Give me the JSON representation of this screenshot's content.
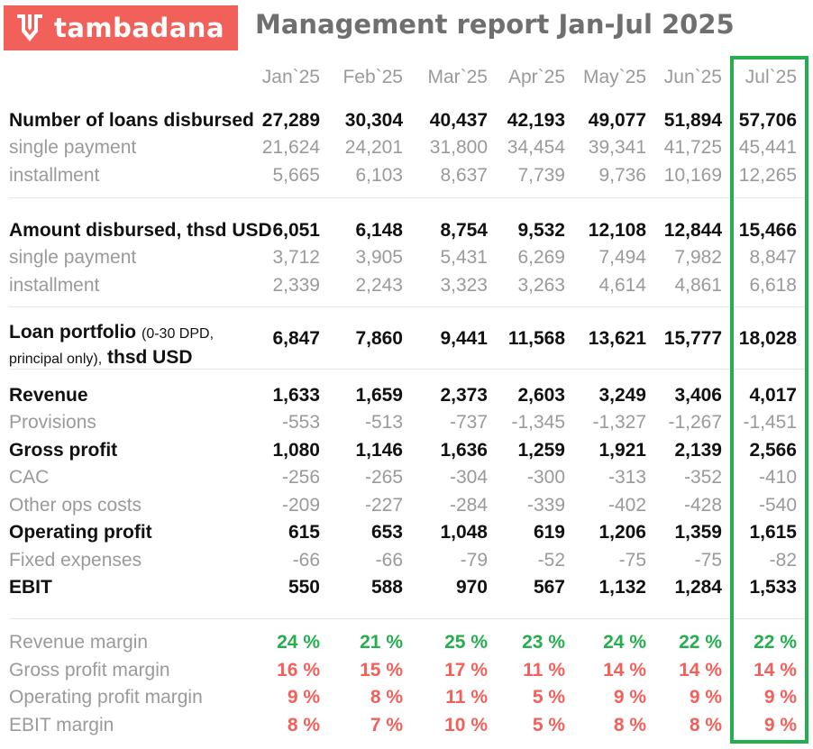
{
  "brand": {
    "name": "tambadana",
    "color": "#f2605a"
  },
  "report": {
    "title": "Management report Jan-Jul 2025"
  },
  "months": [
    "Jan`25",
    "Feb`25",
    "Mar`25",
    "Apr`25",
    "May`25",
    "Jun`25",
    "Jul`25"
  ],
  "highlight": {
    "month": "Jul`25",
    "color": "#24ae4e"
  },
  "rows": [
    {
      "id": "loans-disbursed",
      "label": "Number of loans disbursed",
      "style": "bold",
      "values": [
        "27,289",
        "30,304",
        "40,437",
        "42,193",
        "49,077",
        "51,894",
        "57,706"
      ]
    },
    {
      "id": "loans-single",
      "label": "single payment",
      "style": "gray",
      "values": [
        "21,624",
        "24,201",
        "31,800",
        "34,454",
        "39,341",
        "41,725",
        "45,441"
      ]
    },
    {
      "id": "loans-installment",
      "label": "installment",
      "style": "gray",
      "values": [
        "5,665",
        "6,103",
        "8,637",
        "7,739",
        "9,736",
        "10,169",
        "12,265"
      ]
    },
    {
      "id": "amount-disbursed",
      "label": "Amount disbursed, thsd USD",
      "style": "bold",
      "values": [
        "6,051",
        "6,148",
        "8,754",
        "9,532",
        "12,108",
        "12,844",
        "15,466"
      ]
    },
    {
      "id": "amount-single",
      "label": "single payment",
      "style": "gray",
      "values": [
        "3,712",
        "3,905",
        "5,431",
        "6,269",
        "7,494",
        "7,982",
        "8,847"
      ]
    },
    {
      "id": "amount-installment",
      "label": "installment",
      "style": "gray",
      "values": [
        "2,339",
        "2,243",
        "3,323",
        "3,263",
        "4,614",
        "4,861",
        "6,618"
      ]
    },
    {
      "id": "loan-portfolio",
      "label": "Loan portfolio",
      "label_note": "(0-30 DPD,",
      "label_line2_note": "principal only),",
      "label_line2_bold": "thsd USD",
      "style": "bold",
      "values": [
        "6,847",
        "7,860",
        "9,441",
        "11,568",
        "13,621",
        "15,777",
        "18,028"
      ]
    },
    {
      "id": "revenue",
      "label": "Revenue",
      "style": "bold",
      "values": [
        "1,633",
        "1,659",
        "2,373",
        "2,603",
        "3,249",
        "3,406",
        "4,017"
      ]
    },
    {
      "id": "provisions",
      "label": "Provisions",
      "style": "gray",
      "values": [
        "-553",
        "-513",
        "-737",
        "-1,345",
        "-1,327",
        "-1,267",
        "-1,451"
      ]
    },
    {
      "id": "gross-profit",
      "label": "Gross profit",
      "style": "bold",
      "values": [
        "1,080",
        "1,146",
        "1,636",
        "1,259",
        "1,921",
        "2,139",
        "2,566"
      ]
    },
    {
      "id": "cac",
      "label": "CAC",
      "style": "gray",
      "values": [
        "-256",
        "-265",
        "-304",
        "-300",
        "-313",
        "-352",
        "-410"
      ]
    },
    {
      "id": "other-ops-costs",
      "label": "Other ops costs",
      "style": "gray",
      "values": [
        "-209",
        "-227",
        "-284",
        "-339",
        "-402",
        "-428",
        "-540"
      ]
    },
    {
      "id": "operating-profit",
      "label": "Operating profit",
      "style": "bold",
      "values": [
        "615",
        "653",
        "1,048",
        "619",
        "1,206",
        "1,359",
        "1,615"
      ]
    },
    {
      "id": "fixed-expenses",
      "label": "Fixed expenses",
      "style": "gray",
      "values": [
        "-66",
        "-66",
        "-79",
        "-52",
        "-75",
        "-75",
        "-82"
      ]
    },
    {
      "id": "ebit",
      "label": "EBIT",
      "style": "bold",
      "values": [
        "550",
        "588",
        "970",
        "567",
        "1,132",
        "1,284",
        "1,533"
      ]
    },
    {
      "id": "revenue-margin",
      "label": "Revenue margin",
      "style": "gray",
      "value_style": "green",
      "values": [
        "24 %",
        "21 %",
        "25 %",
        "23 %",
        "24 %",
        "22 %",
        "22 %"
      ]
    },
    {
      "id": "gross-profit-margin",
      "label": "Gross profit margin",
      "style": "gray",
      "value_style": "red",
      "values": [
        "16 %",
        "15 %",
        "17 %",
        "11 %",
        "14 %",
        "14 %",
        "14 %"
      ]
    },
    {
      "id": "operating-profit-margin",
      "label": "Operating profit margin",
      "style": "gray",
      "value_style": "red",
      "values": [
        "9 %",
        "8 %",
        "11 %",
        "5 %",
        "9 %",
        "9 %",
        "9 %"
      ]
    },
    {
      "id": "ebit-margin",
      "label": "EBIT margin",
      "style": "gray",
      "value_style": "red",
      "values": [
        "8 %",
        "7 %",
        "10 %",
        "5 %",
        "8 %",
        "8 %",
        "9 %"
      ]
    }
  ],
  "colors": {
    "green": "#24ae4e",
    "red": "#f2605a",
    "gray": "#9a9a9a",
    "text": "#111111",
    "title": "#6f6f6f"
  }
}
